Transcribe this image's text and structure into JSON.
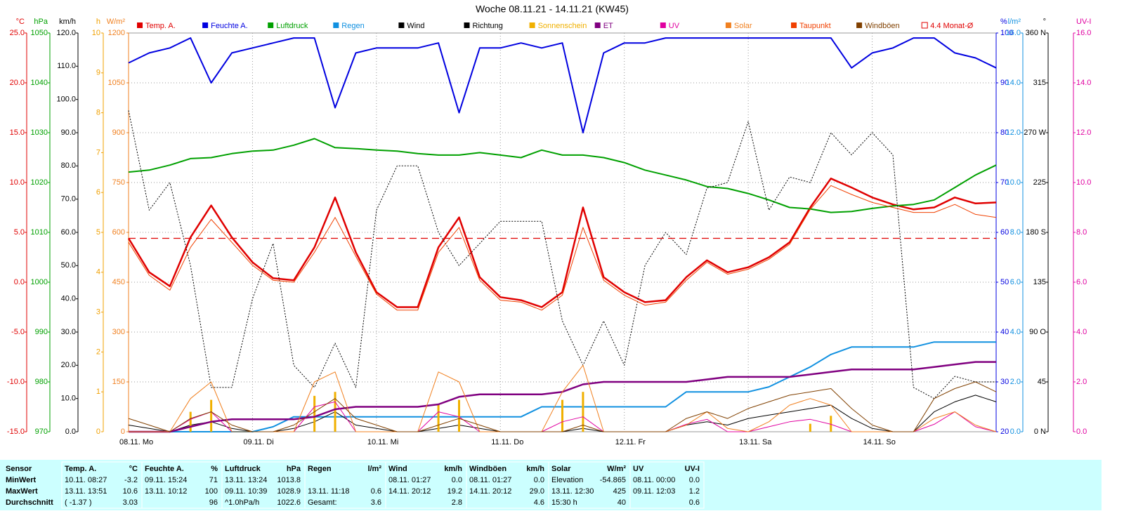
{
  "chart_data": {
    "type": "line",
    "title": "Woche 08.11.21 - 14.11.21 (KW45)",
    "xlim": [
      0,
      168
    ],
    "xticks": [
      {
        "value": 0,
        "label": "08.11. Mo"
      },
      {
        "value": 24,
        "label": "09.11. Di"
      },
      {
        "value": 48,
        "label": "10.11. Mi"
      },
      {
        "value": 72,
        "label": "11.11. Do"
      },
      {
        "value": 96,
        "label": "12.11. Fr"
      },
      {
        "value": 120,
        "label": "13.11. Sa"
      },
      {
        "value": 144,
        "label": "14.11. So"
      }
    ],
    "grid": true,
    "x": [
      0,
      4,
      8,
      12,
      16,
      20,
      24,
      28,
      32,
      36,
      40,
      44,
      48,
      52,
      56,
      60,
      64,
      68,
      72,
      76,
      80,
      84,
      88,
      92,
      96,
      100,
      104,
      108,
      112,
      116,
      120,
      124,
      128,
      132,
      136,
      140,
      144,
      148,
      152,
      156,
      160,
      164,
      168
    ],
    "axes": [
      {
        "label": "°C",
        "color": "#e00000",
        "side": "left",
        "lim": [
          -15,
          25
        ],
        "ticks": [
          {
            "value": 25,
            "label": "25.0"
          },
          {
            "value": 20,
            "label": "20.0"
          },
          {
            "value": 15,
            "label": "15.0"
          },
          {
            "value": 10,
            "label": "10.0"
          },
          {
            "value": 5,
            "label": "5.0"
          },
          {
            "value": 0,
            "label": "0.0"
          },
          {
            "value": -5,
            "label": "-5.0"
          },
          {
            "value": -10,
            "label": "-10.0"
          },
          {
            "value": -15,
            "label": "-15.0"
          }
        ]
      },
      {
        "label": "hPa",
        "color": "#00a000",
        "side": "left",
        "lim": [
          970,
          1050
        ],
        "ticks": [
          1050,
          1040,
          1030,
          1020,
          1010,
          1000,
          990,
          980,
          970
        ]
      },
      {
        "label": "km/h",
        "color": "#000000",
        "side": "left",
        "lim": [
          0,
          120
        ],
        "ticks": [
          {
            "value": 120,
            "label": "120.0"
          },
          {
            "value": 110,
            "label": "110.0"
          },
          {
            "value": 100,
            "label": "100.0"
          },
          {
            "value": 90,
            "label": "90.0"
          },
          {
            "value": 80,
            "label": "80.0"
          },
          {
            "value": 70,
            "label": "70.0"
          },
          {
            "value": 60,
            "label": "60.0"
          },
          {
            "value": 50,
            "label": "50.0"
          },
          {
            "value": 40,
            "label": "40.0"
          },
          {
            "value": 30,
            "label": "30.0"
          },
          {
            "value": 20,
            "label": "20.0"
          },
          {
            "value": 10,
            "label": "10.0"
          },
          {
            "value": 0,
            "label": "0.0"
          }
        ]
      },
      {
        "label": "h",
        "color": "#f0a000",
        "side": "left",
        "lim": [
          0,
          10
        ],
        "ticks": [
          10,
          9,
          8,
          7,
          6,
          5,
          4,
          3,
          2,
          1,
          0
        ]
      },
      {
        "label": "W/m²",
        "color": "#f08020",
        "side": "left",
        "lim": [
          0,
          1200
        ],
        "ticks": [
          1200,
          1050,
          900,
          750,
          600,
          450,
          300,
          150,
          0
        ]
      },
      {
        "label": "%",
        "color": "#0000e0",
        "side": "right",
        "lim": [
          20,
          100
        ],
        "ticks": [
          100,
          90,
          80,
          70,
          60,
          50,
          40,
          30,
          20
        ]
      },
      {
        "label": "l/m²",
        "color": "#1090e0",
        "side": "right",
        "lim": [
          0,
          16
        ],
        "ticks": [
          {
            "value": 16,
            "label": "16.0"
          },
          {
            "value": 14,
            "label": "14.0"
          },
          {
            "value": 12,
            "label": "12.0"
          },
          {
            "value": 10,
            "label": "10.0"
          },
          {
            "value": 8,
            "label": "8.0"
          },
          {
            "value": 6,
            "label": "6.0"
          },
          {
            "value": 4,
            "label": "4.0"
          },
          {
            "value": 2,
            "label": "2.0"
          },
          {
            "value": 0,
            "label": "0.0"
          }
        ]
      },
      {
        "label": "°",
        "color": "#000000",
        "side": "right",
        "lim": [
          0,
          360
        ],
        "ticks": [
          {
            "value": 360,
            "label": "360 N"
          },
          315,
          {
            "value": 270,
            "label": "270 W"
          },
          225,
          {
            "value": 180,
            "label": "180 S"
          },
          135,
          {
            "value": 90,
            "label": "90 O"
          },
          45,
          {
            "value": 0,
            "label": "0 N"
          }
        ]
      },
      {
        "label": "UV-I",
        "color": "#e000a0",
        "side": "right",
        "lim": [
          0,
          16
        ],
        "ticks": [
          {
            "value": 16,
            "label": "16.0"
          },
          {
            "value": 14,
            "label": "14.0"
          },
          {
            "value": 12,
            "label": "12.0"
          },
          {
            "value": 10,
            "label": "10.0"
          },
          {
            "value": 8,
            "label": "8.0"
          },
          {
            "value": 6,
            "label": "6.0"
          },
          {
            "value": 4,
            "label": "4.0"
          },
          {
            "value": 2,
            "label": "2.0"
          },
          {
            "value": 0,
            "label": "0.0"
          }
        ]
      }
    ],
    "series": [
      {
        "name": "Temp. A.",
        "color": "#e00000",
        "axis": "°C",
        "style": "bold",
        "values": [
          4.4,
          1.0,
          -0.4,
          4.5,
          7.7,
          4.5,
          2.0,
          0.4,
          0.2,
          3.5,
          8.5,
          3.0,
          -1.0,
          -2.5,
          -2.5,
          3.5,
          6.5,
          0.5,
          -1.5,
          -1.8,
          -2.5,
          -1.0,
          7.5,
          0.5,
          -1.0,
          -2.0,
          -1.8,
          0.5,
          2.2,
          1.0,
          1.5,
          2.5,
          4.0,
          7.5,
          10.4,
          9.5,
          8.5,
          7.8,
          7.3,
          7.5,
          8.5,
          7.9,
          8.0
        ]
      },
      {
        "name": "Feuchte A.",
        "color": "#0000e0",
        "axis": "%",
        "style": "line",
        "values": [
          94,
          96,
          97,
          99,
          90,
          96,
          97,
          98,
          99,
          99,
          85,
          96,
          97,
          97,
          97,
          98,
          84,
          97,
          97,
          98,
          97,
          98,
          80,
          96,
          98,
          98,
          99,
          99,
          99,
          99,
          99,
          99,
          99,
          99,
          99,
          93,
          96,
          97,
          99,
          99,
          96,
          95,
          93
        ]
      },
      {
        "name": "Luftdruck",
        "color": "#00a000",
        "axis": "hPa",
        "style": "line",
        "values": [
          1022.1,
          1022.5,
          1023.5,
          1024.8,
          1025.0,
          1025.8,
          1026.3,
          1026.5,
          1027.5,
          1028.8,
          1027.0,
          1026.8,
          1026.5,
          1026.3,
          1025.8,
          1025.5,
          1025.5,
          1026.0,
          1025.5,
          1025.0,
          1026.5,
          1025.5,
          1025.5,
          1025.0,
          1024.0,
          1022.5,
          1021.5,
          1020.5,
          1019.2,
          1018.8,
          1017.8,
          1016.5,
          1015.0,
          1014.7,
          1014.0,
          1014.2,
          1014.8,
          1015.3,
          1015.6,
          1016.5,
          1019.0,
          1021.5,
          1023.5
        ]
      },
      {
        "name": "Regen",
        "color": "#1090e0",
        "axis": "l/m²",
        "style": "line",
        "values": [
          0,
          0,
          0,
          0,
          0,
          0,
          0,
          0.2,
          0.6,
          0.6,
          0.6,
          0.6,
          0.6,
          0.6,
          0.6,
          0.6,
          0.6,
          0.6,
          0.6,
          0.6,
          1.0,
          1.0,
          1.0,
          1.0,
          1.0,
          1.0,
          1.0,
          1.6,
          1.6,
          1.6,
          1.6,
          1.8,
          2.2,
          2.6,
          3.1,
          3.4,
          3.4,
          3.4,
          3.4,
          3.6,
          3.6,
          3.6,
          3.6
        ]
      },
      {
        "name": "Wind",
        "color": "#000000",
        "axis": "km/h",
        "style": "thin",
        "values": [
          2,
          1,
          0,
          2,
          3,
          1,
          0,
          0,
          1,
          3,
          6,
          2,
          1,
          0,
          0,
          1,
          2,
          1,
          0,
          0,
          0,
          0,
          1,
          0,
          0,
          0,
          0,
          2,
          3,
          2,
          4,
          5,
          6,
          7,
          8,
          4,
          1,
          0,
          0,
          6,
          9,
          11,
          9
        ]
      },
      {
        "name": "Richtung",
        "color": "#000000",
        "axis": "°",
        "style": "dotted",
        "values": [
          290,
          200,
          225,
          150,
          40,
          40,
          120,
          170,
          60,
          40,
          80,
          40,
          200,
          240,
          240,
          180,
          150,
          170,
          190,
          190,
          190,
          100,
          60,
          100,
          60,
          150,
          180,
          160,
          220,
          225,
          280,
          200,
          230,
          225,
          270,
          250,
          270,
          250,
          40,
          30,
          50,
          45,
          45
        ]
      },
      {
        "name": "Sonnenschein",
        "color": "#f0b000",
        "axis": "h",
        "style": "bars",
        "values": [
          0,
          0,
          0,
          0.5,
          0.8,
          0,
          0,
          0,
          0,
          0.9,
          1.0,
          0,
          0,
          0,
          0,
          0.7,
          0.8,
          0,
          0,
          0,
          0,
          0.8,
          1.0,
          0,
          0,
          0,
          0,
          0,
          0,
          0,
          0,
          0,
          0,
          0.2,
          0.4,
          0,
          0,
          0,
          0,
          0,
          0,
          0,
          0
        ]
      },
      {
        "name": "ET",
        "color": "#800080",
        "axis": "l/m²",
        "style": "bold",
        "values": [
          0,
          0,
          0,
          0.2,
          0.4,
          0.5,
          0.5,
          0.5,
          0.5,
          0.6,
          0.9,
          1.0,
          1.0,
          1.0,
          1.0,
          1.1,
          1.4,
          1.5,
          1.5,
          1.5,
          1.5,
          1.6,
          1.9,
          2.0,
          2.0,
          2.0,
          2.0,
          2.0,
          2.1,
          2.2,
          2.2,
          2.2,
          2.2,
          2.3,
          2.4,
          2.5,
          2.5,
          2.5,
          2.5,
          2.6,
          2.7,
          2.8,
          2.8
        ]
      },
      {
        "name": "UV",
        "color": "#e000a0",
        "axis": "UV-I",
        "style": "thin",
        "values": [
          0,
          0,
          0,
          0.5,
          0.8,
          0,
          0,
          0,
          0,
          1.0,
          1.2,
          0,
          0,
          0,
          0,
          0.8,
          0.6,
          0,
          0,
          0,
          0,
          0.4,
          0.6,
          0,
          0,
          0,
          0,
          0.3,
          0.5,
          0,
          0,
          0.2,
          0.4,
          0.5,
          0.3,
          0,
          0,
          0,
          0,
          0.3,
          0.8,
          0.2,
          0
        ]
      },
      {
        "name": "Solar",
        "color": "#f08020",
        "axis": "W/m²",
        "style": "thin",
        "values": [
          0,
          0,
          0,
          100,
          150,
          0,
          0,
          0,
          0,
          150,
          180,
          0,
          0,
          0,
          0,
          180,
          150,
          0,
          0,
          0,
          0,
          120,
          200,
          0,
          0,
          0,
          0,
          20,
          60,
          10,
          0,
          30,
          80,
          100,
          80,
          0,
          0,
          0,
          0,
          40,
          60,
          20,
          0
        ]
      },
      {
        "name": "Taupunkt",
        "color": "#f04000",
        "axis": "°C",
        "style": "thin",
        "values": [
          4.0,
          0.7,
          -0.8,
          3.5,
          6.3,
          4.0,
          1.7,
          0.2,
          0,
          3.0,
          6.5,
          2.6,
          -1.2,
          -2.8,
          -2.8,
          3.0,
          5.5,
          0.2,
          -1.8,
          -2.0,
          -2.8,
          -1.3,
          5.5,
          0.2,
          -1.3,
          -2.3,
          -2.0,
          0.2,
          2.0,
          0.8,
          1.3,
          2.3,
          3.8,
          7.3,
          9.7,
          8.8,
          8.0,
          7.5,
          7.0,
          7.0,
          7.8,
          6.8,
          6.5
        ]
      },
      {
        "name": "Windböen",
        "color": "#804000",
        "axis": "km/h",
        "style": "thin",
        "values": [
          4,
          2,
          0,
          4,
          6,
          2,
          0,
          0,
          2,
          6,
          10,
          4,
          2,
          0,
          0,
          2,
          4,
          2,
          0,
          0,
          0,
          0,
          2,
          0,
          0,
          0,
          0,
          4,
          6,
          4,
          7,
          9,
          11,
          12,
          13,
          7,
          2,
          0,
          0,
          10,
          13,
          15,
          12
        ]
      }
    ],
    "monthly_avg": {
      "label": "4.4 Monat-Ø",
      "value": 4.4,
      "axis": "°C",
      "color": "#e00000"
    }
  },
  "table": {
    "row_labels": [
      "Sensor",
      "MinWert",
      "MaxWert",
      "Durchschnitt"
    ],
    "groups": [
      {
        "name": "Temp. A.",
        "unit": "°C",
        "rows": [
          [
            "10.11. 08:27",
            "-3.2"
          ],
          [
            "13.11. 13:51",
            "10.6"
          ],
          [
            "( -1.37 )",
            "3.03"
          ]
        ]
      },
      {
        "name": "Feuchte A.",
        "unit": "%",
        "rows": [
          [
            "09.11. 15:24",
            "71"
          ],
          [
            "13.11. 10:12",
            "100"
          ],
          [
            null,
            "96"
          ]
        ]
      },
      {
        "name": "Luftdruck",
        "unit": "hPa",
        "rows": [
          [
            "13.11. 13:24",
            "1013.8"
          ],
          [
            "09.11. 10:39",
            "1028.9"
          ],
          [
            "^1.0hPa/h",
            "1022.6"
          ]
        ]
      },
      {
        "name": "Regen",
        "unit": "l/m²",
        "rows": [
          [
            null,
            null
          ],
          [
            "13.11. 11:18",
            "0.6"
          ],
          [
            "Gesamt:",
            "3.6"
          ]
        ]
      },
      {
        "name": "Wind",
        "unit": "km/h",
        "rows": [
          [
            "08.11. 01:27",
            "0.0"
          ],
          [
            "14.11. 20:12",
            "19.2"
          ],
          [
            null,
            "2.8"
          ]
        ]
      },
      {
        "name": "Windböen",
        "unit": "km/h",
        "rows": [
          [
            "08.11. 01:27",
            "0.0"
          ],
          [
            "14.11. 20:12",
            "29.0"
          ],
          [
            null,
            "4.6"
          ]
        ]
      },
      {
        "name": "Solar",
        "unit": "W/m²",
        "rows": [
          [
            "Elevation",
            "-54.865"
          ],
          [
            "13.11. 12:30",
            "425"
          ],
          [
            "15:30 h",
            "40"
          ]
        ]
      },
      {
        "name": "UV",
        "unit": "UV-I",
        "rows": [
          [
            "08.11. 00:00",
            "0.0"
          ],
          [
            "09.11. 12:03",
            "1.2"
          ],
          [
            null,
            "0.6"
          ]
        ]
      }
    ]
  }
}
